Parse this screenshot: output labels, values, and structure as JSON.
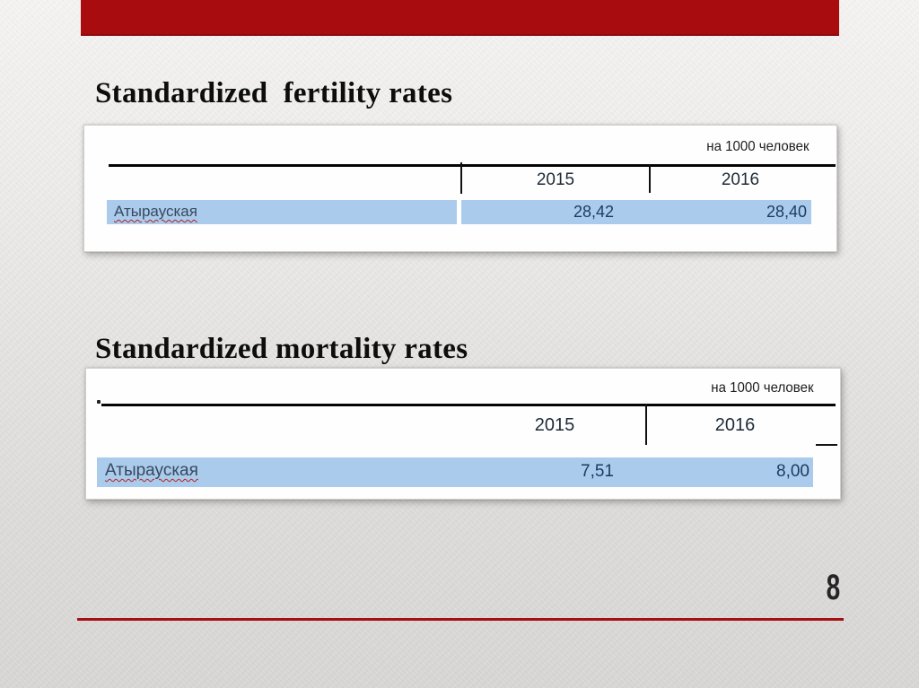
{
  "slide": {
    "titles": {
      "fertility": "Standardized  fertility rates",
      "mortality": "Standardized mortality rates"
    },
    "page_number": "8"
  },
  "tables": {
    "fertility": {
      "unit_label": "на 1000 человек",
      "columns": [
        "2015",
        "2016"
      ],
      "row": {
        "name": "Атырауская",
        "values": [
          "28,42",
          "28,40"
        ]
      }
    },
    "mortality": {
      "unit_label": "на 1000 человек",
      "columns": [
        "2015",
        "2016"
      ],
      "row": {
        "name": "Атырауская",
        "values": [
          "7,51",
          "8,00"
        ]
      }
    }
  },
  "colors": {
    "accent_red": "#a90c0e",
    "row_highlight": "#abcbec",
    "value_text": "#1d3a5f"
  }
}
